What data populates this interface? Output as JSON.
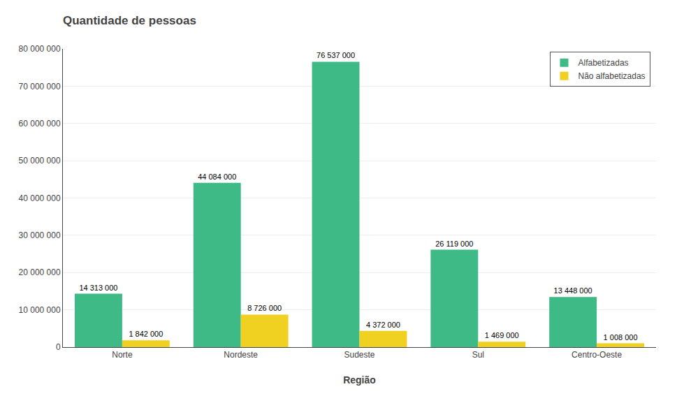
{
  "chart_data": {
    "type": "bar",
    "title": "Quantidade de pessoas",
    "xlabel": "Região",
    "categories": [
      "Norte",
      "Nordeste",
      "Sudeste",
      "Sul",
      "Centro-Oeste"
    ],
    "series": [
      {
        "name": "Alfabetizadas",
        "color": "#3dba85",
        "values": [
          14313000,
          44084000,
          76537000,
          26119000,
          13448000
        ],
        "value_labels": [
          "14 313 000",
          "44 084 000",
          "76 537 000",
          "26 119 000",
          "13 448 000"
        ]
      },
      {
        "name": "Não alfabetizadas",
        "color": "#f0d020",
        "values": [
          1842000,
          8726000,
          4372000,
          1469000,
          1008000
        ],
        "value_labels": [
          "1 842 000",
          "8 726 000",
          "4 372 000",
          "1 469 000",
          "1 008 000"
        ]
      }
    ],
    "ylim": [
      0,
      80000000
    ],
    "yticks": [
      0,
      {
        "value": 10000000,
        "label": "10 000 000"
      },
      {
        "value": 20000000,
        "label": "20 000 000"
      },
      {
        "value": 30000000,
        "label": "30 000 000"
      },
      {
        "value": 40000000,
        "label": "40 000 000"
      },
      {
        "value": 50000000,
        "label": "50 000 000"
      },
      {
        "value": 60000000,
        "label": "60 000 000"
      },
      {
        "value": 70000000,
        "label": "70 000 000"
      },
      {
        "value": 80000000,
        "label": "80 000 000"
      }
    ],
    "grid": true,
    "legend": "upper right",
    "data_labels": true
  }
}
